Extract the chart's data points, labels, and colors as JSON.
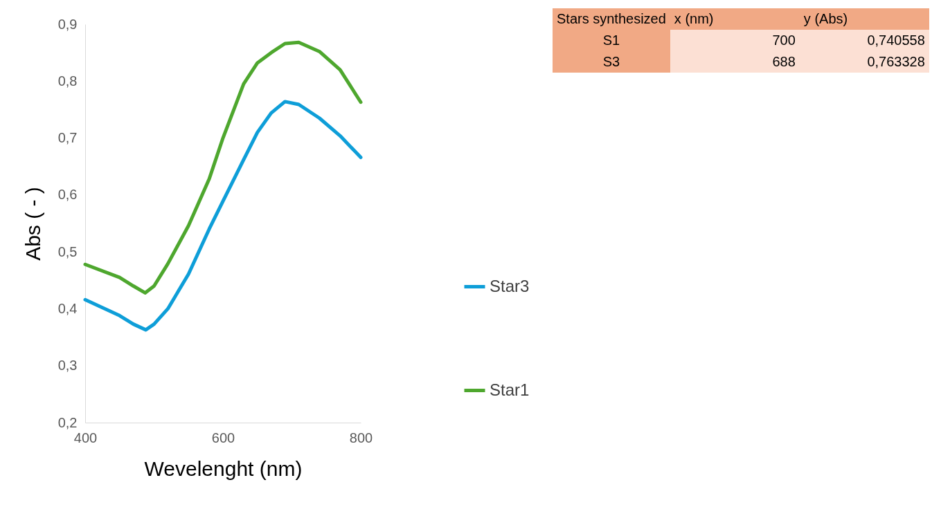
{
  "chart_data": [
    {
      "type": "line",
      "xlabel": "Wevelenght (nm)",
      "ylabel": "Abs ( - )",
      "xlim": [
        400,
        800
      ],
      "xticks": [
        400,
        600,
        800
      ],
      "ylim": [
        0.2,
        0.9
      ],
      "yticks": [
        {
          "value": 0.2,
          "label": "0,2"
        },
        {
          "value": 0.3,
          "label": "0,3"
        },
        {
          "value": 0.4,
          "label": "0,4"
        },
        {
          "value": 0.5,
          "label": "0,5"
        },
        {
          "value": 0.6,
          "label": "0,6"
        },
        {
          "value": 0.7,
          "label": "0,7"
        },
        {
          "value": 0.8,
          "label": "0,8"
        },
        {
          "value": 0.9,
          "label": "0,9"
        }
      ],
      "grid": false,
      "legend": "right",
      "marker": "none",
      "line_style": "solid",
      "series": [
        {
          "name": "Star3",
          "color": "#0e9ed8",
          "x": [
            400,
            450,
            470,
            488,
            500,
            520,
            550,
            580,
            600,
            630,
            650,
            670,
            690,
            710,
            740,
            770,
            800
          ],
          "values": [
            0.416,
            0.388,
            0.373,
            0.363,
            0.373,
            0.4,
            0.461,
            0.54,
            0.589,
            0.662,
            0.71,
            0.744,
            0.764,
            0.759,
            0.735,
            0.704,
            0.666
          ]
        },
        {
          "name": "Star1",
          "color": "#4ea72e",
          "x": [
            400,
            450,
            470,
            487,
            500,
            520,
            550,
            580,
            600,
            630,
            650,
            670,
            690,
            710,
            740,
            770,
            800
          ],
          "values": [
            0.478,
            0.455,
            0.44,
            0.428,
            0.44,
            0.479,
            0.546,
            0.628,
            0.7,
            0.795,
            0.832,
            0.85,
            0.866,
            0.868,
            0.852,
            0.82,
            0.763
          ]
        }
      ]
    },
    {
      "type": "other",
      "categories": [
        "Stars synthesized",
        "x (nm)",
        "y (Abs)"
      ],
      "y_categories": [
        "S1",
        "S3"
      ],
      "cell_labels": [
        [
          "700",
          "0,740558"
        ],
        [
          "688",
          "0,763328"
        ]
      ]
    }
  ]
}
